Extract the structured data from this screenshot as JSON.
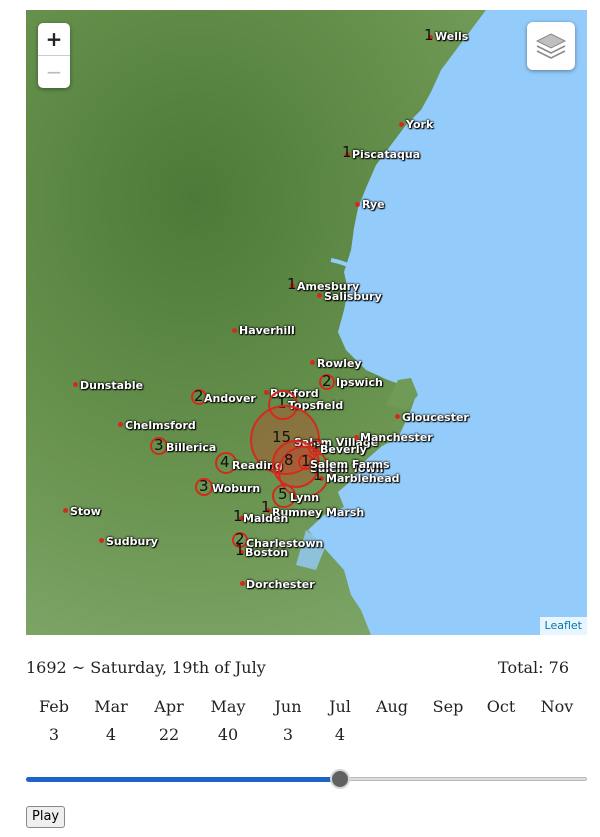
{
  "map": {
    "zoom_in": "+",
    "zoom_out": "−",
    "attribution": "Leaflet",
    "places": [
      {
        "name": "Wells",
        "count": "1"
      },
      {
        "name": "York",
        "count": ""
      },
      {
        "name": "Piscataqua",
        "count": "1"
      },
      {
        "name": "Rye",
        "count": ""
      },
      {
        "name": "Amesbury",
        "count": "1"
      },
      {
        "name": "Salisbury",
        "count": ""
      },
      {
        "name": "Haverhill",
        "count": ""
      },
      {
        "name": "Rowley",
        "count": ""
      },
      {
        "name": "Ipswich",
        "count": "2"
      },
      {
        "name": "Dunstable",
        "count": ""
      },
      {
        "name": "Andover",
        "count": "2"
      },
      {
        "name": "Boxford",
        "count": ""
      },
      {
        "name": "Topsfield",
        "count": "1"
      },
      {
        "name": "Gloucester",
        "count": ""
      },
      {
        "name": "Chelmsford",
        "count": ""
      },
      {
        "name": "Billerica",
        "count": "3"
      },
      {
        "name": "Salem Village",
        "count": "15"
      },
      {
        "name": "Manchester",
        "count": ""
      },
      {
        "name": "Beverly",
        "count": "1"
      },
      {
        "name": "Reading",
        "count": "4"
      },
      {
        "name": "Salem Town",
        "count": "8"
      },
      {
        "name": "Salem Farms",
        "count": "1"
      },
      {
        "name": "Marblehead",
        "count": "1"
      },
      {
        "name": "Woburn",
        "count": "3"
      },
      {
        "name": "Lynn",
        "count": "5"
      },
      {
        "name": "Stow",
        "count": ""
      },
      {
        "name": "Rumney Marsh",
        "count": "1"
      },
      {
        "name": "Malden",
        "count": "1"
      },
      {
        "name": "Sudbury",
        "count": ""
      },
      {
        "name": "Charlestown",
        "count": "2"
      },
      {
        "name": "Boston",
        "count": "1"
      },
      {
        "name": "Dorchester",
        "count": ""
      }
    ]
  },
  "timeline": {
    "date_label": "1692 ~ Saturday, 19th of July",
    "total_label": "Total: 76",
    "months": [
      {
        "name": "Feb",
        "value": "3"
      },
      {
        "name": "Mar",
        "value": "4"
      },
      {
        "name": "Apr",
        "value": "22"
      },
      {
        "name": "May",
        "value": "40"
      },
      {
        "name": "Jun",
        "value": "3"
      },
      {
        "name": "Jul",
        "value": "4"
      },
      {
        "name": "Aug",
        "value": ""
      },
      {
        "name": "Sep",
        "value": ""
      },
      {
        "name": "Oct",
        "value": ""
      },
      {
        "name": "Nov",
        "value": ""
      }
    ],
    "progress": 0.56,
    "play_label": "Play"
  },
  "colors": {
    "land": "#5e8c45",
    "water": "#93ccfa",
    "marker": "#d42a1e",
    "slider": "#1e63c9"
  },
  "icons": {
    "layers": "layers-icon"
  }
}
